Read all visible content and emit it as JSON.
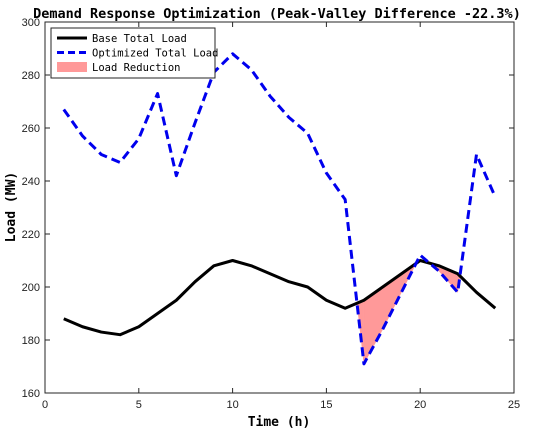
{
  "chart_data": {
    "type": "line",
    "title": "Demand Response Optimization (Peak-Valley Difference -22.3%)",
    "xlabel": "Time (h)",
    "ylabel": "Load (MW)",
    "xlim": [
      0,
      25
    ],
    "ylim": [
      160,
      300
    ],
    "xticks": [
      0,
      5,
      10,
      15,
      20,
      25
    ],
    "yticks": [
      160,
      180,
      200,
      220,
      240,
      260,
      280,
      300
    ],
    "grid": false,
    "legend_position": "top-left",
    "x": [
      1,
      2,
      3,
      4,
      5,
      6,
      7,
      8,
      9,
      10,
      11,
      12,
      13,
      14,
      15,
      16,
      17,
      18,
      19,
      20,
      21,
      22,
      23,
      24
    ],
    "series": [
      {
        "name": "Base Total Load",
        "color": "#000000",
        "style": "solid",
        "values": [
          188,
          185,
          183,
          182,
          185,
          190,
          195,
          202,
          208,
          210,
          208,
          205,
          202,
          200,
          195,
          192,
          195,
          200,
          205,
          210,
          208,
          205,
          198,
          192
        ]
      },
      {
        "name": "Optimized Total Load",
        "color": "#0000ee",
        "style": "dashed",
        "values": [
          267,
          257,
          250,
          247,
          256,
          273,
          242,
          262,
          281,
          288,
          282,
          272,
          264,
          258,
          243,
          233,
          171,
          184,
          198,
          212,
          206,
          198,
          250,
          234
        ]
      }
    ],
    "fill": {
      "name": "Load Reduction",
      "color": "#ff9999",
      "between": [
        "Base Total Load",
        "Optimized Total Load"
      ],
      "where": "Optimized Total Load below Base Total Load"
    }
  }
}
